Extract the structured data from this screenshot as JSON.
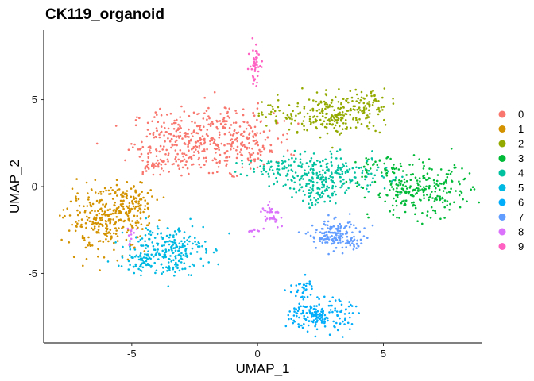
{
  "chart_data": {
    "type": "scatter",
    "title": "CK119_organoid",
    "xlabel": "UMAP_1",
    "ylabel": "UMAP_2",
    "xlim": [
      -8.5,
      8.9
    ],
    "ylim": [
      -9.0,
      9.0
    ],
    "x_ticks": [
      -5,
      0,
      5
    ],
    "y_ticks": [
      -5,
      0,
      5
    ],
    "x_tick_labels": [
      "-5",
      "0",
      "5"
    ],
    "y_tick_labels": [
      "-5",
      "0",
      "5"
    ],
    "grid": false,
    "legend_position": "right",
    "series": [
      {
        "name": "0",
        "color": "#F8766D",
        "clusters": [
          {
            "cx": -2.8,
            "cy": 2.6,
            "sx": 1.1,
            "sy": 0.95,
            "n": 260
          },
          {
            "cx": -1.0,
            "cy": 2.8,
            "sx": 0.9,
            "sy": 0.85,
            "n": 170
          },
          {
            "cx": -4.2,
            "cy": 1.4,
            "sx": 0.5,
            "sy": 0.5,
            "n": 40
          },
          {
            "cx": 0.2,
            "cy": 2.0,
            "sx": 0.4,
            "sy": 0.4,
            "n": 30
          }
        ]
      },
      {
        "name": "1",
        "color": "#D39200",
        "clusters": [
          {
            "cx": -6.0,
            "cy": -2.0,
            "sx": 0.8,
            "sy": 0.85,
            "n": 280
          },
          {
            "cx": -5.0,
            "cy": -0.8,
            "sx": 0.6,
            "sy": 0.6,
            "n": 90
          }
        ]
      },
      {
        "name": "2",
        "color": "#93AA00",
        "clusters": [
          {
            "cx": 2.9,
            "cy": 4.1,
            "sx": 1.0,
            "sy": 0.55,
            "n": 210
          },
          {
            "cx": 4.3,
            "cy": 4.8,
            "sx": 0.4,
            "sy": 0.4,
            "n": 60
          },
          {
            "cx": 0.5,
            "cy": 4.3,
            "sx": 0.3,
            "sy": 0.3,
            "n": 18
          }
        ]
      },
      {
        "name": "3",
        "color": "#00BA38",
        "clusters": [
          {
            "cx": 6.5,
            "cy": -0.3,
            "sx": 1.0,
            "sy": 0.75,
            "n": 240
          },
          {
            "cx": 4.8,
            "cy": 1.0,
            "sx": 0.5,
            "sy": 0.4,
            "n": 40
          }
        ]
      },
      {
        "name": "4",
        "color": "#00C19F",
        "clusters": [
          {
            "cx": 2.8,
            "cy": 0.7,
            "sx": 1.2,
            "sy": 0.55,
            "n": 260
          },
          {
            "cx": 0.5,
            "cy": 1.0,
            "sx": 0.6,
            "sy": 0.3,
            "n": 40
          },
          {
            "cx": 2.4,
            "cy": -0.5,
            "sx": 0.4,
            "sy": 0.3,
            "n": 40
          }
        ]
      },
      {
        "name": "5",
        "color": "#00B9E3",
        "clusters": [
          {
            "cx": -3.6,
            "cy": -3.6,
            "sx": 0.75,
            "sy": 0.75,
            "n": 240
          },
          {
            "cx": -4.8,
            "cy": -4.3,
            "sx": 0.4,
            "sy": 0.3,
            "n": 40
          }
        ]
      },
      {
        "name": "6",
        "color": "#00ADFA",
        "clusters": [
          {
            "cx": 2.5,
            "cy": -7.4,
            "sx": 0.6,
            "sy": 0.45,
            "n": 180
          },
          {
            "cx": 1.8,
            "cy": -5.9,
            "sx": 0.2,
            "sy": 0.35,
            "n": 30
          }
        ]
      },
      {
        "name": "7",
        "color": "#619CFF",
        "clusters": [
          {
            "cx": 3.0,
            "cy": -2.8,
            "sx": 0.45,
            "sy": 0.45,
            "n": 140
          },
          {
            "cx": 4.0,
            "cy": -3.1,
            "sx": 0.3,
            "sy": 0.2,
            "n": 25
          }
        ]
      },
      {
        "name": "8",
        "color": "#DB72FB",
        "clusters": [
          {
            "cx": 0.5,
            "cy": -1.6,
            "sx": 0.2,
            "sy": 0.3,
            "n": 35
          },
          {
            "cx": -0.1,
            "cy": -2.6,
            "sx": 0.2,
            "sy": 0.1,
            "n": 10
          },
          {
            "cx": -5.0,
            "cy": -2.8,
            "sx": 0.2,
            "sy": 0.3,
            "n": 10
          }
        ]
      },
      {
        "name": "9",
        "color": "#FF61C3",
        "clusters": [
          {
            "cx": -0.1,
            "cy": 7.0,
            "sx": 0.1,
            "sy": 0.6,
            "n": 50
          }
        ]
      }
    ]
  }
}
